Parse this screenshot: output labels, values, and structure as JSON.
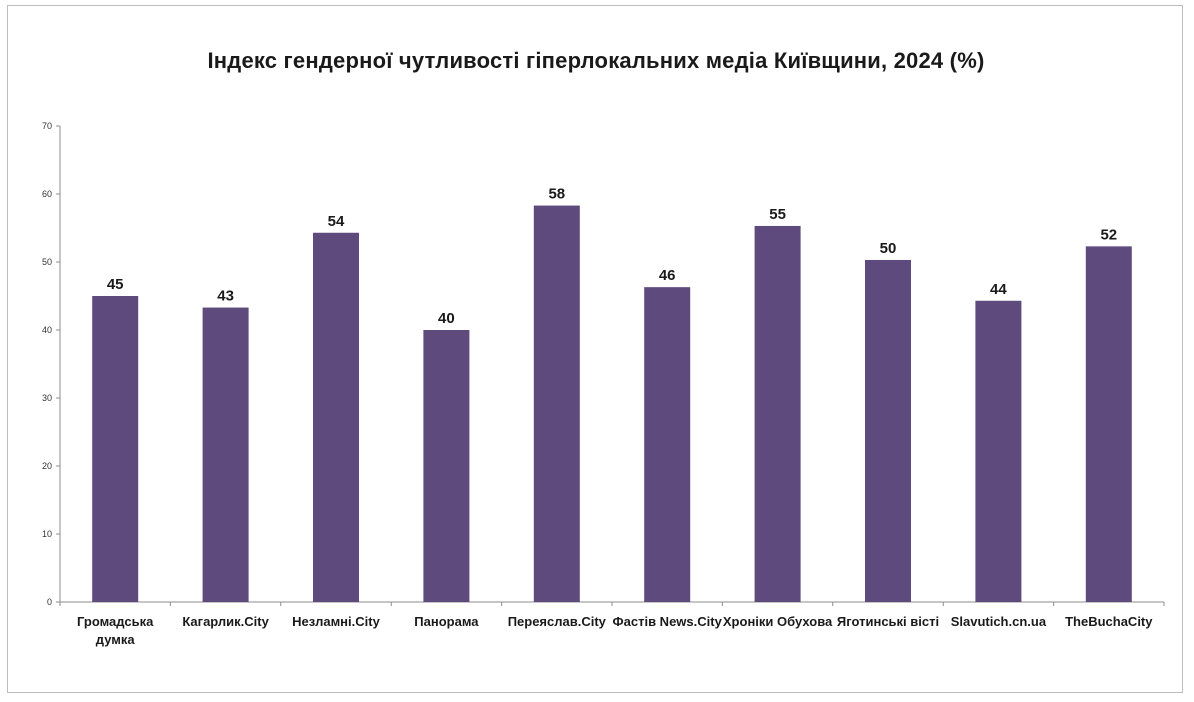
{
  "chart_data": {
    "type": "bar",
    "title": "Індекс гендерної чутливості гіперлокальних медіа Київщини, 2024 (%)",
    "xlabel": "",
    "ylabel": "",
    "ylim": [
      0,
      70
    ],
    "yticks": [
      0,
      10,
      20,
      30,
      40,
      50,
      60,
      70
    ],
    "grid": false,
    "legend": "none",
    "bar_color": "#5e4a7c",
    "categories": [
      "Громадська думка",
      "Кагарлик.City",
      "Незламні.City",
      "Панорама",
      "Переяслав.City",
      "Фастів News.City",
      "Хроніки Обухова",
      "Яготинські вісті",
      "Slavutich.cn.ua",
      "TheBuchaCity"
    ],
    "category_lines": [
      [
        "Громадська",
        "думка"
      ],
      [
        "Кагарлик.City"
      ],
      [
        "Незламні.City"
      ],
      [
        "Панорама"
      ],
      [
        "Переяслав.City"
      ],
      [
        "Фастів News.City"
      ],
      [
        "Хроніки Обухова"
      ],
      [
        "Яготинські вісті"
      ],
      [
        "Slavutich.cn.ua"
      ],
      [
        "TheBuchaCity"
      ]
    ],
    "values": [
      45,
      43.3,
      54.3,
      40,
      58.3,
      46.3,
      55.3,
      50.3,
      44.3,
      52.3
    ],
    "data_labels": [
      "45",
      "43",
      "54",
      "40",
      "58",
      "46",
      "55",
      "50",
      "44",
      "52"
    ]
  }
}
